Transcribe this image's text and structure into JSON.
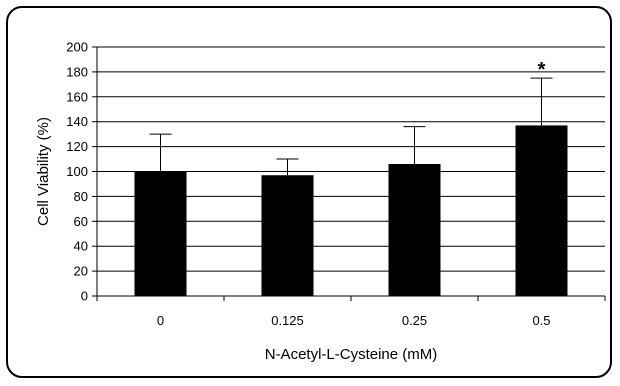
{
  "chart_data": {
    "type": "bar",
    "categories": [
      "0",
      "0.125",
      "0.25",
      "0.5"
    ],
    "values": [
      100,
      97,
      106,
      137
    ],
    "error_upper": [
      130,
      110,
      136,
      175
    ],
    "xlabel": "N-Acetyl-L-Cysteine (mM)",
    "ylabel": "Cell Viability (%)",
    "ylim": [
      0,
      200
    ],
    "yticks": [
      "0",
      "20",
      "40",
      "60",
      "80",
      "100",
      "120",
      "140",
      "160",
      "180",
      "200"
    ],
    "grid": true,
    "legend": "none",
    "bar_color": "#000000",
    "annotations": [
      {
        "category": "0.5",
        "text": "*"
      }
    ]
  }
}
